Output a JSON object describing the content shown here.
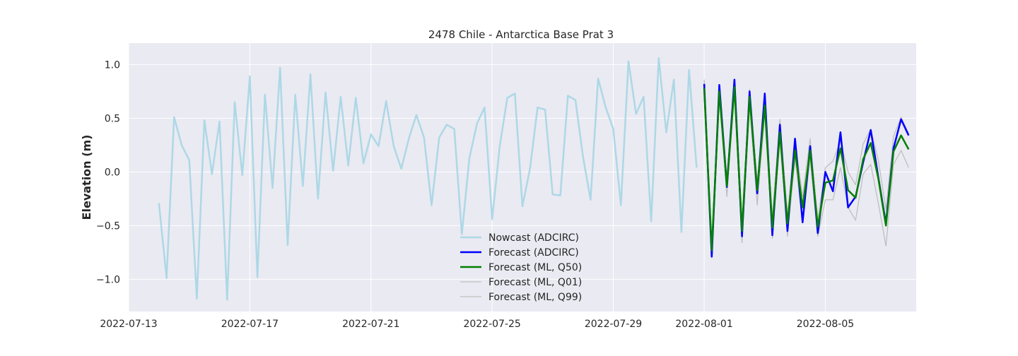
{
  "chart_data": {
    "type": "line",
    "title": "2478 Chile - Antarctica Base Prat 3",
    "xlabel": "",
    "ylabel": "Elevation (m)",
    "ylim": [
      -1.3,
      1.2
    ],
    "xlim": [
      "2022-07-13T00:00",
      "2022-08-08T00:00"
    ],
    "x_ticks": [
      "2022-07-13",
      "2022-07-17",
      "2022-07-21",
      "2022-07-25",
      "2022-07-29",
      "2022-08-01",
      "2022-08-05"
    ],
    "y_ticks": [
      1.0,
      0.5,
      0.0,
      -0.5,
      -1.0
    ],
    "y_tick_labels": [
      "1.0",
      "0.5",
      "0.0",
      "−0.5",
      "−1.0"
    ],
    "grid": true,
    "legend_position": "lower center",
    "colors": {
      "background": "#eaeaf2",
      "grid": "#ffffff",
      "nowcast": "#add8e6",
      "forecast_adcirc": "#0000ff",
      "forecast_ml_q50": "#008000",
      "forecast_ml_q01": "#bfbfbf",
      "forecast_ml_q99": "#bfbfbf"
    },
    "series": [
      {
        "name": "Nowcast (ADCIRC)",
        "color_key": "nowcast",
        "x": [
          "2022-07-14T00:00",
          "2022-07-14T06:00",
          "2022-07-14T12:00",
          "2022-07-14T18:00",
          "2022-07-15T00:00",
          "2022-07-15T06:00",
          "2022-07-15T12:00",
          "2022-07-15T18:00",
          "2022-07-16T00:00",
          "2022-07-16T06:00",
          "2022-07-16T12:00",
          "2022-07-16T18:00",
          "2022-07-17T00:00",
          "2022-07-17T06:00",
          "2022-07-17T12:00",
          "2022-07-17T18:00",
          "2022-07-18T00:00",
          "2022-07-18T06:00",
          "2022-07-18T12:00",
          "2022-07-18T18:00",
          "2022-07-19T00:00",
          "2022-07-19T06:00",
          "2022-07-19T12:00",
          "2022-07-19T18:00",
          "2022-07-20T00:00",
          "2022-07-20T06:00",
          "2022-07-20T12:00",
          "2022-07-20T18:00",
          "2022-07-21T00:00",
          "2022-07-21T06:00",
          "2022-07-21T12:00",
          "2022-07-21T18:00",
          "2022-07-22T00:00",
          "2022-07-22T06:00",
          "2022-07-22T12:00",
          "2022-07-22T18:00",
          "2022-07-23T00:00",
          "2022-07-23T06:00",
          "2022-07-23T12:00",
          "2022-07-23T18:00",
          "2022-07-24T00:00",
          "2022-07-24T06:00",
          "2022-07-24T12:00",
          "2022-07-24T18:00",
          "2022-07-25T00:00",
          "2022-07-25T06:00",
          "2022-07-25T12:00",
          "2022-07-25T18:00",
          "2022-07-26T00:00",
          "2022-07-26T06:00",
          "2022-07-26T12:00",
          "2022-07-26T18:00",
          "2022-07-27T00:00",
          "2022-07-27T06:00",
          "2022-07-27T12:00",
          "2022-07-27T18:00",
          "2022-07-28T00:00",
          "2022-07-28T06:00",
          "2022-07-28T12:00",
          "2022-07-28T18:00",
          "2022-07-29T00:00",
          "2022-07-29T06:00",
          "2022-07-29T12:00",
          "2022-07-29T18:00",
          "2022-07-30T00:00",
          "2022-07-30T06:00",
          "2022-07-30T12:00",
          "2022-07-30T18:00",
          "2022-07-31T00:00",
          "2022-07-31T06:00",
          "2022-07-31T12:00",
          "2022-07-31T18:00"
        ],
        "y": [
          -0.29,
          -0.99,
          0.51,
          0.25,
          0.11,
          -1.18,
          0.48,
          -0.02,
          0.47,
          -1.19,
          0.65,
          -0.03,
          0.89,
          -0.98,
          0.72,
          -0.15,
          0.97,
          -0.68,
          0.72,
          -0.13,
          0.91,
          -0.25,
          0.74,
          0.01,
          0.7,
          0.06,
          0.69,
          0.08,
          0.35,
          0.24,
          0.66,
          0.24,
          0.03,
          0.31,
          0.53,
          0.32,
          -0.31,
          0.32,
          0.44,
          0.4,
          -0.58,
          0.13,
          0.45,
          0.6,
          -0.44,
          0.24,
          0.69,
          0.73,
          -0.32,
          0.03,
          0.6,
          0.58,
          -0.21,
          -0.22,
          0.71,
          0.67,
          0.14,
          -0.26,
          0.87,
          0.6,
          0.4,
          -0.31,
          1.03,
          0.54,
          0.7,
          -0.46,
          1.06,
          0.37,
          0.86,
          -0.56,
          0.95,
          0.04
        ]
      },
      {
        "name": "Forecast (ADCIRC)",
        "color_key": "forecast_adcirc",
        "x": [
          "2022-08-01T00:00",
          "2022-08-01T06:00",
          "2022-08-01T12:00",
          "2022-08-01T18:00",
          "2022-08-02T00:00",
          "2022-08-02T06:00",
          "2022-08-02T12:00",
          "2022-08-02T18:00",
          "2022-08-03T00:00",
          "2022-08-03T06:00",
          "2022-08-03T12:00",
          "2022-08-03T18:00",
          "2022-08-04T00:00",
          "2022-08-04T06:00",
          "2022-08-04T12:00",
          "2022-08-04T18:00",
          "2022-08-05T00:00",
          "2022-08-05T06:00",
          "2022-08-05T12:00",
          "2022-08-05T18:00",
          "2022-08-06T00:00",
          "2022-08-06T06:00",
          "2022-08-06T12:00",
          "2022-08-06T18:00",
          "2022-08-07T00:00",
          "2022-08-07T06:00",
          "2022-08-07T12:00",
          "2022-08-07T18:00"
        ],
        "y": [
          0.82,
          -0.79,
          0.81,
          -0.14,
          0.86,
          -0.6,
          0.75,
          -0.2,
          0.73,
          -0.59,
          0.44,
          -0.55,
          0.31,
          -0.47,
          0.24,
          -0.57,
          0.0,
          -0.18,
          0.37,
          -0.33,
          -0.23,
          0.09,
          0.39,
          -0.05,
          -0.48,
          0.22,
          0.49,
          0.34
        ]
      },
      {
        "name": "Forecast (ML, Q50)",
        "color_key": "forecast_ml_q50",
        "x": [
          "2022-08-01T00:00",
          "2022-08-01T06:00",
          "2022-08-01T12:00",
          "2022-08-01T18:00",
          "2022-08-02T00:00",
          "2022-08-02T06:00",
          "2022-08-02T12:00",
          "2022-08-02T18:00",
          "2022-08-03T00:00",
          "2022-08-03T06:00",
          "2022-08-03T12:00",
          "2022-08-03T18:00",
          "2022-08-04T00:00",
          "2022-08-04T06:00",
          "2022-08-04T12:00",
          "2022-08-04T18:00",
          "2022-08-05T00:00",
          "2022-08-05T06:00",
          "2022-08-05T12:00",
          "2022-08-05T18:00",
          "2022-08-06T00:00",
          "2022-08-06T06:00",
          "2022-08-06T12:00",
          "2022-08-06T18:00",
          "2022-08-07T00:00",
          "2022-08-07T06:00",
          "2022-08-07T12:00",
          "2022-08-07T18:00"
        ],
        "y": [
          0.78,
          -0.73,
          0.75,
          -0.13,
          0.79,
          -0.55,
          0.7,
          -0.17,
          0.62,
          -0.52,
          0.37,
          -0.48,
          0.2,
          -0.33,
          0.2,
          -0.51,
          -0.1,
          -0.08,
          0.22,
          -0.17,
          -0.24,
          0.12,
          0.27,
          -0.06,
          -0.5,
          0.19,
          0.34,
          0.21
        ]
      },
      {
        "name": "Forecast (ML, Q01)",
        "color_key": "forecast_ml_q01",
        "x": [
          "2022-08-01T00:00",
          "2022-08-01T06:00",
          "2022-08-01T12:00",
          "2022-08-01T18:00",
          "2022-08-02T00:00",
          "2022-08-02T06:00",
          "2022-08-02T12:00",
          "2022-08-02T18:00",
          "2022-08-03T00:00",
          "2022-08-03T06:00",
          "2022-08-03T12:00",
          "2022-08-03T18:00",
          "2022-08-04T00:00",
          "2022-08-04T06:00",
          "2022-08-04T12:00",
          "2022-08-04T18:00",
          "2022-08-05T00:00",
          "2022-08-05T06:00",
          "2022-08-05T12:00",
          "2022-08-05T18:00",
          "2022-08-06T00:00",
          "2022-08-06T06:00",
          "2022-08-06T12:00",
          "2022-08-06T18:00",
          "2022-08-07T00:00",
          "2022-08-07T06:00",
          "2022-08-07T12:00",
          "2022-08-07T18:00"
        ],
        "y": [
          0.74,
          -0.77,
          0.7,
          -0.23,
          0.75,
          -0.66,
          0.62,
          -0.31,
          0.55,
          -0.62,
          0.29,
          -0.6,
          0.12,
          -0.46,
          0.12,
          -0.6,
          -0.26,
          -0.26,
          0.04,
          -0.33,
          -0.45,
          -0.02,
          0.07,
          -0.29,
          -0.69,
          0.07,
          0.2,
          0.04
        ]
      },
      {
        "name": "Forecast (ML, Q99)",
        "color_key": "forecast_ml_q99",
        "x": [
          "2022-08-01T00:00",
          "2022-08-01T06:00",
          "2022-08-01T12:00",
          "2022-08-01T18:00",
          "2022-08-02T00:00",
          "2022-08-02T06:00",
          "2022-08-02T12:00",
          "2022-08-02T18:00",
          "2022-08-03T00:00",
          "2022-08-03T06:00",
          "2022-08-03T12:00",
          "2022-08-03T18:00",
          "2022-08-04T00:00",
          "2022-08-04T06:00",
          "2022-08-04T12:00",
          "2022-08-04T18:00",
          "2022-08-05T00:00",
          "2022-08-05T06:00",
          "2022-08-05T12:00",
          "2022-08-05T18:00",
          "2022-08-06T00:00",
          "2022-08-06T06:00",
          "2022-08-06T12:00",
          "2022-08-06T18:00",
          "2022-08-07T00:00",
          "2022-08-07T06:00",
          "2022-08-07T12:00",
          "2022-08-07T18:00"
        ],
        "y": [
          0.86,
          -0.7,
          0.8,
          -0.04,
          0.84,
          -0.45,
          0.77,
          -0.09,
          0.69,
          -0.42,
          0.49,
          -0.39,
          0.29,
          -0.23,
          0.31,
          -0.44,
          0.04,
          0.1,
          0.29,
          0.0,
          -0.12,
          0.26,
          0.4,
          0.11,
          -0.35,
          0.33,
          0.51,
          0.36
        ]
      }
    ]
  }
}
